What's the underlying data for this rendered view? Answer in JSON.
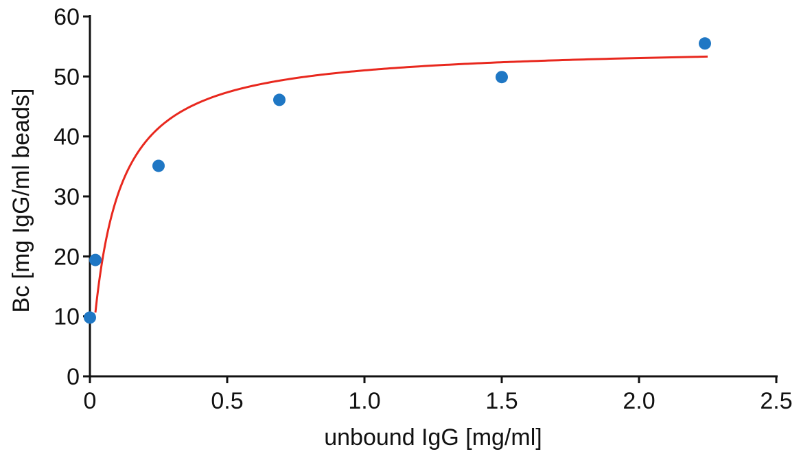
{
  "chart_data": {
    "type": "scatter",
    "title": "",
    "xlabel": "unbound IgG [mg/ml]",
    "ylabel": "Bc [mg IgG/ml beads]",
    "xlim": [
      0,
      2.5
    ],
    "ylim": [
      0,
      60
    ],
    "x_ticks": [
      0,
      0.5,
      1.0,
      1.5,
      2.0,
      2.5
    ],
    "x_tick_labels": [
      "0",
      "0.5",
      "1.0",
      "1.5",
      "2.0",
      "2.5"
    ],
    "y_ticks": [
      0,
      10,
      20,
      30,
      40,
      50,
      60
    ],
    "y_tick_labels": [
      "0",
      "10",
      "20",
      "30",
      "40",
      "50",
      "60"
    ],
    "grid": false,
    "legend": "none",
    "series": [
      {
        "type": "scatter",
        "color": "#1f77c4",
        "points": [
          {
            "x": 0.0,
            "y": 9.8
          },
          {
            "x": 0.02,
            "y": 19.4
          },
          {
            "x": 0.25,
            "y": 35.1
          },
          {
            "x": 0.69,
            "y": 46.1
          },
          {
            "x": 1.5,
            "y": 49.9
          },
          {
            "x": 2.24,
            "y": 55.5
          }
        ]
      },
      {
        "type": "line",
        "color": "#e8281e",
        "curve": {
          "model": "langmuir",
          "qmax": 55.3,
          "kd": 0.084,
          "x_start": 0.02,
          "x_end": 2.25
        }
      }
    ]
  }
}
